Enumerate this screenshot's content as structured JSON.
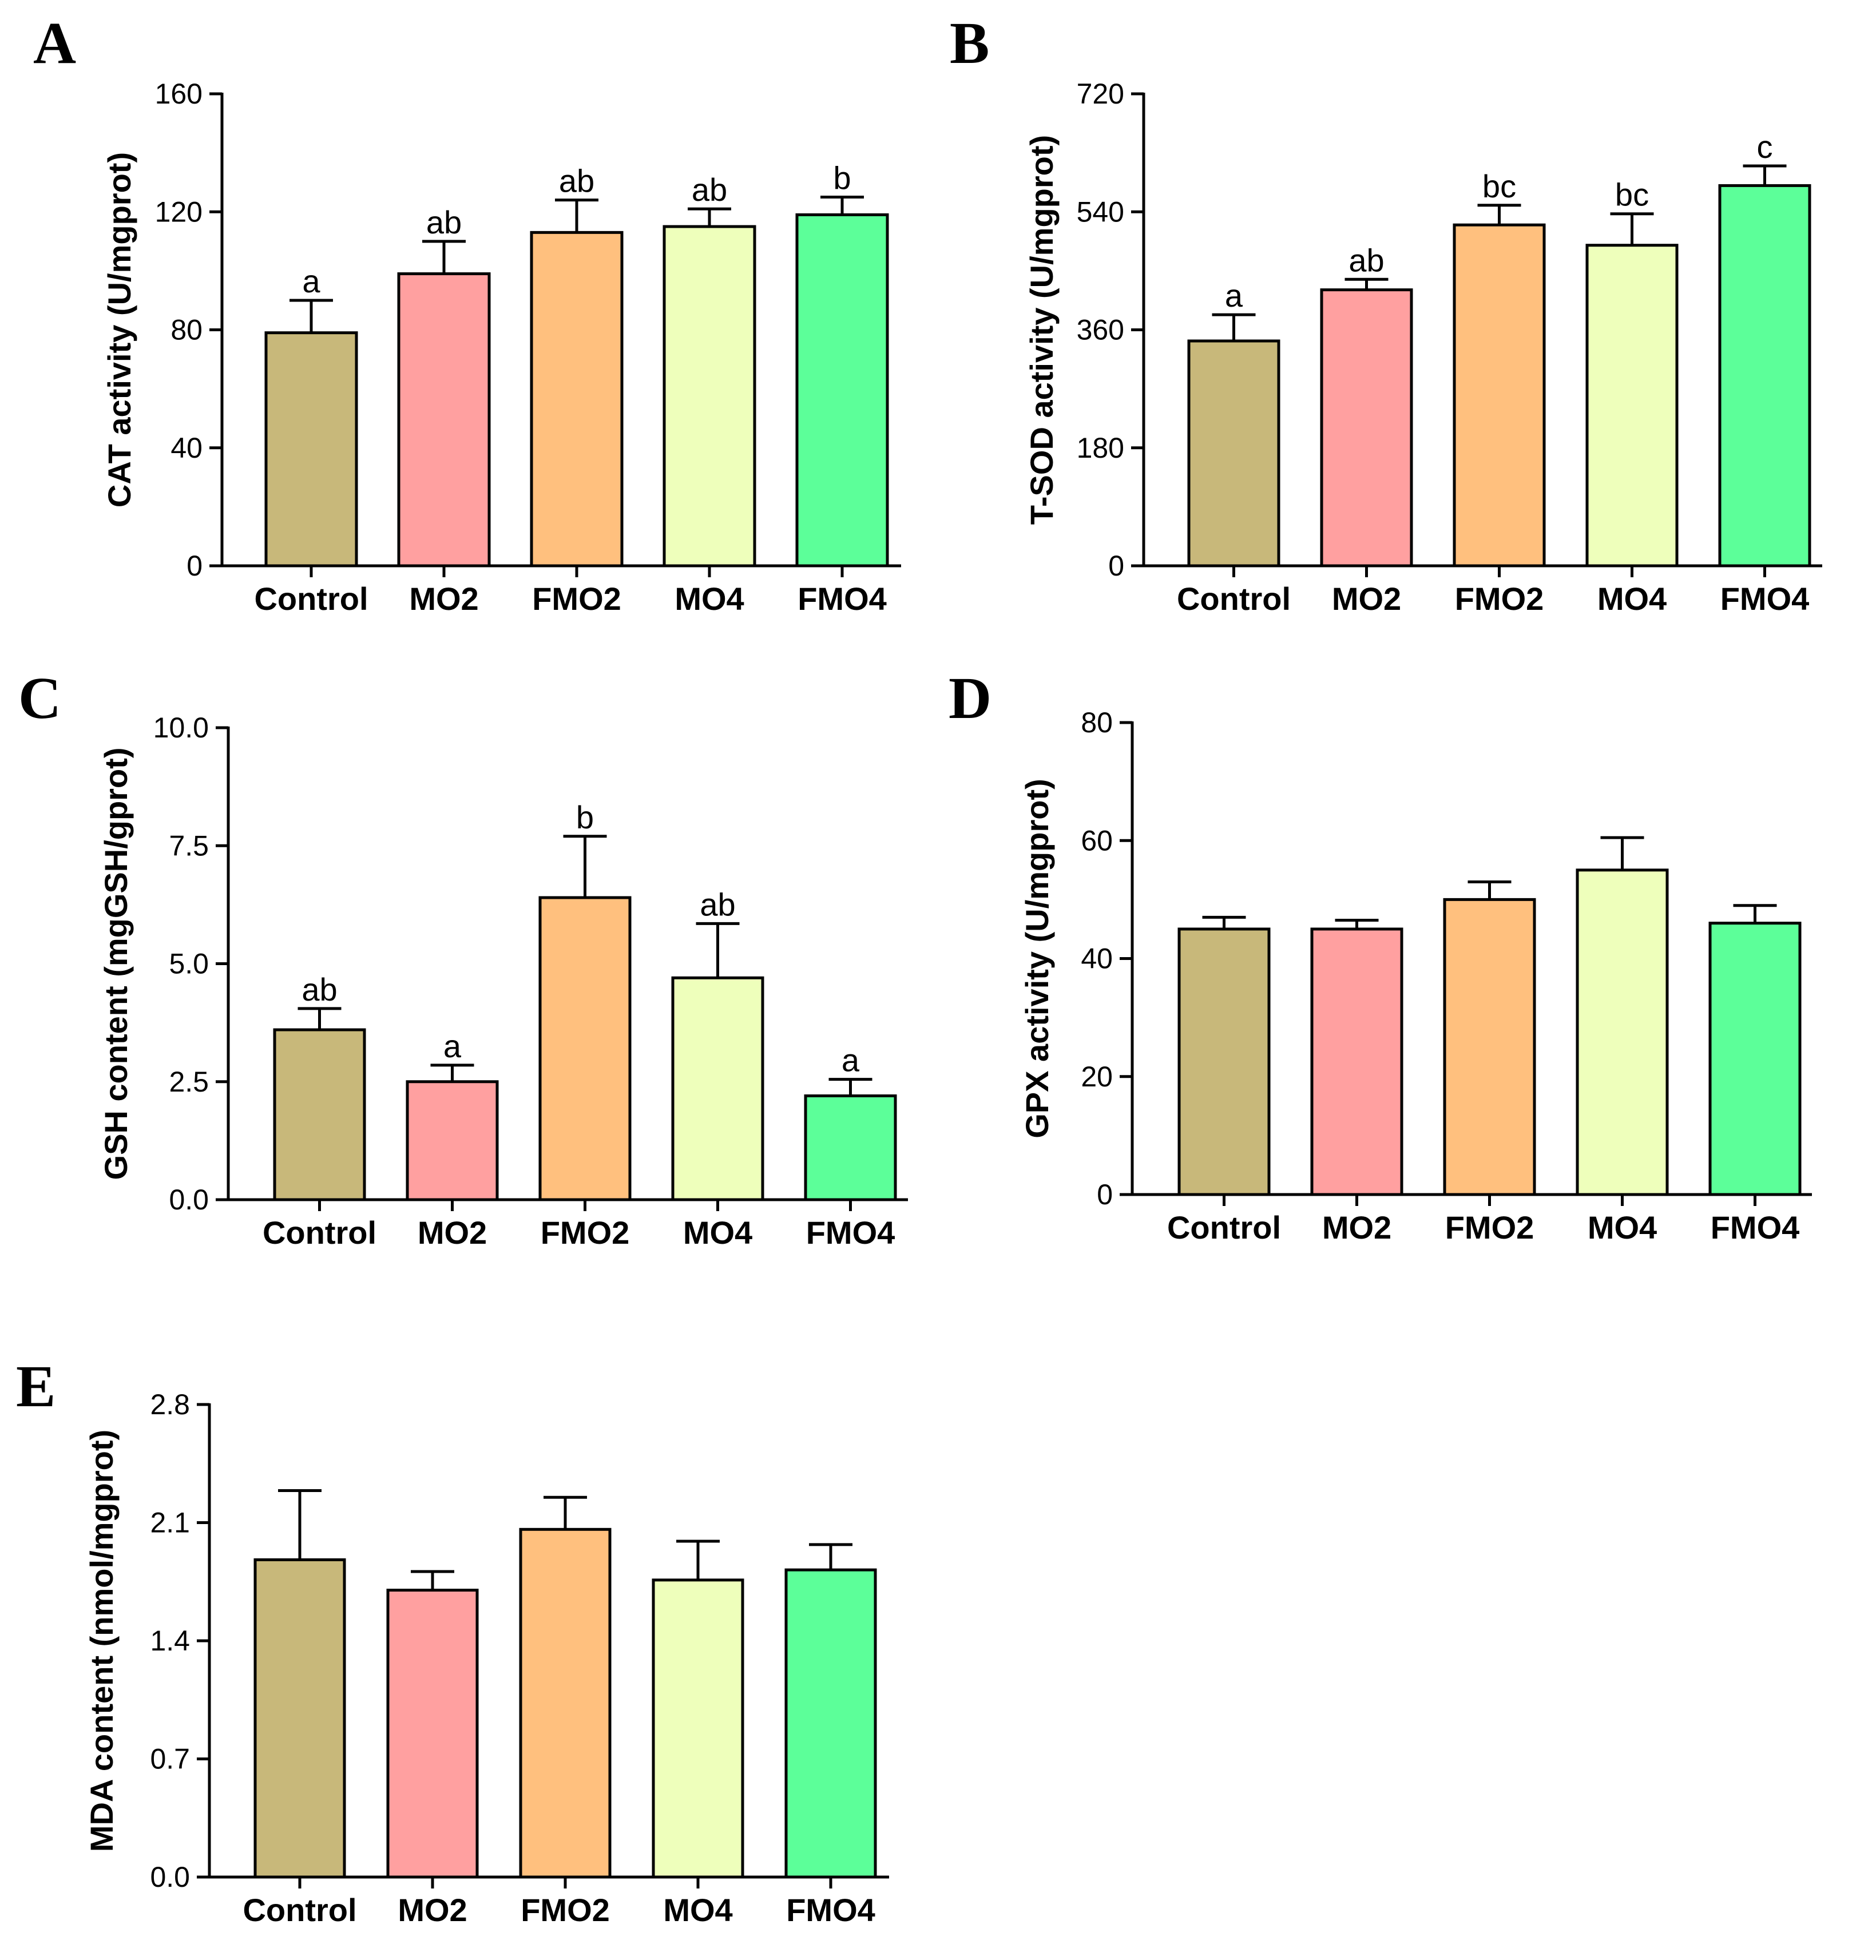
{
  "chart_data": [
    {
      "panel": "A",
      "type": "bar",
      "title": "",
      "xlabel": "",
      "ylabel": "CAT activity (U/mgprot)",
      "ylim": [
        0,
        160
      ],
      "yticks": [
        "0",
        "40",
        "80",
        "120",
        "160"
      ],
      "grid": false,
      "categories": [
        "Control",
        "MO2",
        "FMO2",
        "MO4",
        "FMO4"
      ],
      "values": [
        79,
        99,
        113,
        115,
        119
      ],
      "errors": [
        11,
        11,
        11,
        6,
        6
      ],
      "annotations": [
        "a",
        "ab",
        "ab",
        "ab",
        "b"
      ],
      "colors": [
        "#c8b87a",
        "#ffa0a0",
        "#ffc07e",
        "#eeffbb",
        "#5cff99"
      ]
    },
    {
      "panel": "B",
      "type": "bar",
      "title": "",
      "xlabel": "",
      "ylabel": "T-SOD activity (U/mgprot)",
      "ylim": [
        0,
        720
      ],
      "yticks": [
        "0",
        "180",
        "360",
        "540",
        "720"
      ],
      "grid": false,
      "categories": [
        "Control",
        "MO2",
        "FMO2",
        "MO4",
        "FMO4"
      ],
      "values": [
        343,
        421,
        520,
        489,
        580
      ],
      "errors": [
        40,
        16,
        30,
        48,
        30
      ],
      "annotations": [
        "a",
        "ab",
        "bc",
        "bc",
        "c"
      ],
      "colors": [
        "#c8b87a",
        "#ffa0a0",
        "#ffc07e",
        "#eeffbb",
        "#5cff99"
      ]
    },
    {
      "panel": "C",
      "type": "bar",
      "title": "",
      "xlabel": "",
      "ylabel": "GSH content (mgGSH/gprot)",
      "ylim": [
        0,
        10
      ],
      "yticks": [
        "0.0",
        "2.5",
        "5.0",
        "7.5",
        "10.0"
      ],
      "grid": false,
      "categories": [
        "Control",
        "MO2",
        "FMO2",
        "MO4",
        "FMO4"
      ],
      "values": [
        3.6,
        2.5,
        6.4,
        4.7,
        2.2
      ],
      "errors": [
        0.45,
        0.35,
        1.3,
        1.15,
        0.35
      ],
      "annotations": [
        "ab",
        "a",
        "b",
        "ab",
        "a"
      ],
      "colors": [
        "#c8b87a",
        "#ffa0a0",
        "#ffc07e",
        "#eeffbb",
        "#5cff99"
      ]
    },
    {
      "panel": "D",
      "type": "bar",
      "title": "",
      "xlabel": "",
      "ylabel": "GPX activity (U/mgprot)",
      "ylim": [
        0,
        80
      ],
      "yticks": [
        "0",
        "20",
        "40",
        "60",
        "80"
      ],
      "grid": false,
      "categories": [
        "Control",
        "MO2",
        "FMO2",
        "MO4",
        "FMO4"
      ],
      "values": [
        45,
        45,
        50,
        55,
        46
      ],
      "errors": [
        2,
        1.5,
        3,
        5.5,
        3
      ],
      "annotations": [
        "",
        "",
        "",
        "",
        ""
      ],
      "colors": [
        "#c8b87a",
        "#ffa0a0",
        "#ffc07e",
        "#eeffbb",
        "#5cff99"
      ]
    },
    {
      "panel": "E",
      "type": "bar",
      "title": "",
      "xlabel": "",
      "ylabel": "MDA content (nmol/mgprot)",
      "ylim": [
        0,
        2.8
      ],
      "yticks": [
        "0.0",
        "0.7",
        "1.4",
        "2.1",
        "2.8"
      ],
      "grid": false,
      "categories": [
        "Control",
        "MO2",
        "FMO2",
        "MO4",
        "FMO4"
      ],
      "values": [
        1.88,
        1.7,
        2.06,
        1.76,
        1.82
      ],
      "errors": [
        0.41,
        0.11,
        0.19,
        0.23,
        0.15
      ],
      "annotations": [
        "",
        "",
        "",
        "",
        ""
      ],
      "colors": [
        "#c8b87a",
        "#ffa0a0",
        "#ffc07e",
        "#eeffbb",
        "#5cff99"
      ]
    }
  ]
}
